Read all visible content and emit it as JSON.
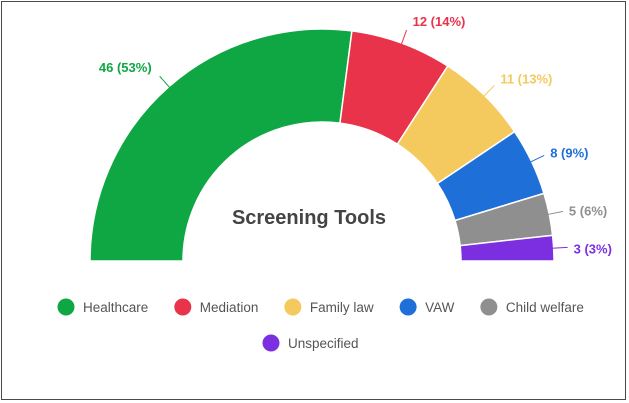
{
  "chart_data": {
    "type": "pie",
    "variant": "semi-donut",
    "title": "Screening Tools",
    "slices": [
      {
        "name": "Healthcare",
        "value": 46,
        "label": "46 (53%)",
        "color": "#0fa644"
      },
      {
        "name": "Mediation",
        "value": 12,
        "label": "12 (14%)",
        "color": "#e8334a"
      },
      {
        "name": "Family law",
        "value": 11,
        "label": "11 (13%)",
        "color": "#f4c95d"
      },
      {
        "name": "VAW",
        "value": 8,
        "label": "8 (9%)",
        "color": "#1f6fd9"
      },
      {
        "name": "Child welfare",
        "value": 5,
        "label": "5 (6%)",
        "color": "#8f8f8f"
      },
      {
        "name": "Unspecified",
        "value": 3,
        "label": "3 (3%)",
        "color": "#7b2fe0"
      }
    ],
    "legend_position": "bottom"
  }
}
